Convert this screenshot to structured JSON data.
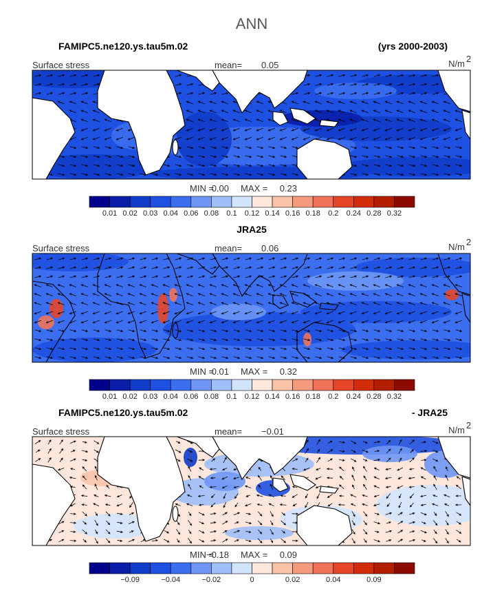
{
  "title": "ANN",
  "panels": [
    {
      "left_title": "FAMIPC5.ne120.ys.tau5m.02",
      "right_title": "(yrs 2000-2003)",
      "variable": "Surface stress",
      "mean_label": "mean=",
      "mean": "0.05",
      "units": "N/m",
      "units_power": "2",
      "min_label": "MIN =",
      "min": "0.00",
      "max_label": "MAX =",
      "max": "0.23",
      "colorbar": {
        "colors": [
          "#00008c",
          "#0a1eaa",
          "#0f3cc8",
          "#1e50e1",
          "#3c6ef0",
          "#6e96f5",
          "#a0bef8",
          "#d2e4fc",
          "#fde6dc",
          "#f9c3aa",
          "#f59b7d",
          "#f0735a",
          "#e64628",
          "#d22d0a",
          "#b41e00",
          "#8c0a00"
        ],
        "labels": [
          "0.01",
          "0.02",
          "0.03",
          "0.04",
          "0.06",
          "0.08",
          "0.1",
          "0.12",
          "0.14",
          "0.16",
          "0.18",
          "0.2",
          "0.24",
          "0.28",
          "0.32"
        ]
      }
    },
    {
      "center_title": "JRA25",
      "variable": "Surface stress",
      "mean_label": "mean=",
      "mean": "0.06",
      "units": "N/m",
      "units_power": "2",
      "min_label": "MIN =",
      "min": "0.01",
      "max_label": "MAX =",
      "max": "0.32",
      "colorbar": {
        "colors": [
          "#00008c",
          "#0a1eaa",
          "#0f3cc8",
          "#1e50e1",
          "#3c6ef0",
          "#6e96f5",
          "#a0bef8",
          "#d2e4fc",
          "#fde6dc",
          "#f9c3aa",
          "#f59b7d",
          "#f0735a",
          "#e64628",
          "#d22d0a",
          "#b41e00",
          "#8c0a00"
        ],
        "labels": [
          "0.01",
          "0.02",
          "0.03",
          "0.04",
          "0.06",
          "0.08",
          "0.1",
          "0.12",
          "0.14",
          "0.16",
          "0.18",
          "0.2",
          "0.24",
          "0.28",
          "0.32"
        ]
      }
    },
    {
      "left_title": "FAMIPC5.ne120.ys.tau5m.02",
      "right_title": "- JRA25",
      "variable": "Surface stress",
      "mean_label": "mean=",
      "mean": "−0.01",
      "units": "N/m",
      "units_power": "2",
      "min_label": "MIN =",
      "min": "−0.18",
      "max_label": "MAX =",
      "max": "0.09",
      "colorbar": {
        "colors": [
          "#00008c",
          "#0a1eaa",
          "#0f3cc8",
          "#1e50e1",
          "#3c6ef0",
          "#6e96f5",
          "#a0bef8",
          "#d2e4fc",
          "#fde6dc",
          "#f9c3aa",
          "#f59b7d",
          "#f0735a",
          "#e64628",
          "#d22d0a",
          "#b41e00",
          "#8c0a00"
        ],
        "labels": [
          null,
          "−0.09",
          null,
          "−0.04",
          null,
          "−0.02",
          null,
          "0",
          null,
          "0.02",
          null,
          "0.04",
          null,
          "0.09",
          null
        ]
      }
    }
  ]
}
